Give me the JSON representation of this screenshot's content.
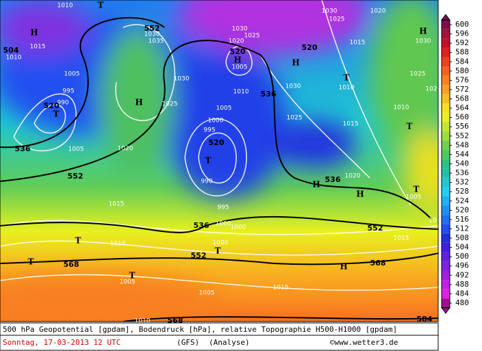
{
  "map_labels": [
    "1010",
    "T",
    "1030",
    "1020",
    "H",
    "552",
    "1030",
    "1035",
    "504",
    "1015",
    "1010",
    "1030",
    "1025",
    "1020",
    "520",
    "H",
    "1005",
    "520",
    "H",
    "1025",
    "1015",
    "H",
    "1030",
    "1005",
    "995",
    "990",
    "520",
    "T",
    "H",
    "1030",
    "1025",
    "1010",
    "536",
    "1030",
    "T",
    "1010",
    "1025",
    "102",
    "1005",
    "1000",
    "995",
    "520",
    "T",
    "990",
    "1025",
    "1015",
    "1010",
    "T",
    "1020",
    "536",
    "1005",
    "552",
    "H",
    "536",
    "1020",
    "H",
    "T",
    "1005",
    "1015",
    "995",
    "1000",
    "1000",
    "536",
    "10",
    "552",
    "1015",
    "T",
    "1010",
    "1000",
    "T",
    "552",
    "T",
    "568",
    "568",
    "H",
    "T",
    "1005",
    "1015",
    "1005",
    "1010",
    "568",
    "584"
  ],
  "scale": {
    "labels": [
      600,
      596,
      592,
      588,
      584,
      580,
      576,
      572,
      568,
      564,
      560,
      556,
      552,
      548,
      544,
      540,
      536,
      532,
      528,
      524,
      520,
      516,
      512,
      508,
      504,
      500,
      496,
      492,
      488,
      484,
      480
    ],
    "colors": [
      "#7a1048",
      "#a0143c",
      "#c8102a",
      "#e02020",
      "#f04020",
      "#f86020",
      "#f88020",
      "#f8a020",
      "#f8c020",
      "#f8e020",
      "#e8f020",
      "#c0e830",
      "#98e040",
      "#70d050",
      "#50c860",
      "#30c080",
      "#20c0a8",
      "#20c8d0",
      "#20d0f0",
      "#20b0f0",
      "#2090f0",
      "#2070f0",
      "#2050f0",
      "#2030e0",
      "#4020e0",
      "#6020e0",
      "#8020e0",
      "#a020e0",
      "#c020e0",
      "#e020e0",
      "#a01090"
    ]
  },
  "footer": {
    "line1": "500 hPa Geopotential [gpdam], Bodendruck [hPa], relative Topographie H500-H1000 [gpdam]",
    "date": "Sonntag, 17-03-2013  12 UTC",
    "model": "(GFS)",
    "run": "(Analyse)",
    "credit": "©www.wetter3.de"
  }
}
